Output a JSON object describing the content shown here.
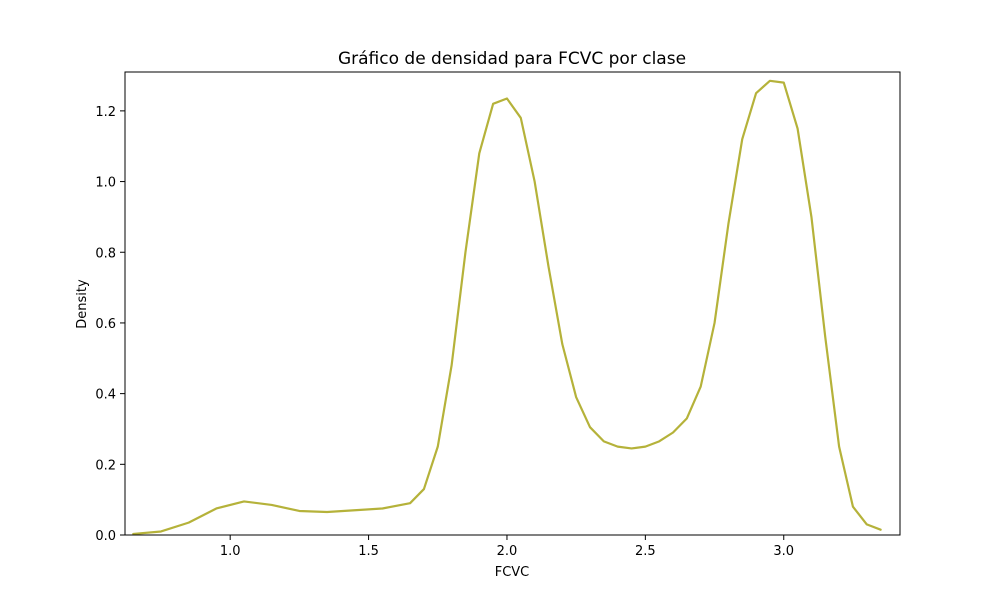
{
  "chart_data": {
    "type": "line",
    "title": "Gráfico de densidad para FCVC por clase",
    "xlabel": "FCVC",
    "ylabel": "Density",
    "xlim": [
      0.62,
      3.42
    ],
    "ylim": [
      0,
      1.31
    ],
    "xticks": [
      1.0,
      1.5,
      2.0,
      2.5,
      3.0
    ],
    "xtick_labels": [
      "1.0",
      "1.5",
      "2.0",
      "2.5",
      "3.0"
    ],
    "yticks": [
      0.0,
      0.2,
      0.4,
      0.6,
      0.8,
      1.0,
      1.2
    ],
    "ytick_labels": [
      "0.0",
      "0.2",
      "0.4",
      "0.6",
      "0.8",
      "1.0",
      "1.2"
    ],
    "grid": false,
    "legend": "none",
    "series": [
      {
        "color": "#b5b23a",
        "x": [
          0.65,
          0.75,
          0.85,
          0.95,
          1.05,
          1.15,
          1.25,
          1.35,
          1.45,
          1.55,
          1.65,
          1.7,
          1.75,
          1.8,
          1.85,
          1.9,
          1.95,
          2.0,
          2.05,
          2.1,
          2.15,
          2.2,
          2.25,
          2.3,
          2.35,
          2.4,
          2.45,
          2.5,
          2.55,
          2.6,
          2.65,
          2.7,
          2.75,
          2.8,
          2.85,
          2.9,
          2.95,
          3.0,
          3.05,
          3.1,
          3.15,
          3.2,
          3.25,
          3.3,
          3.35
        ],
        "y": [
          0.003,
          0.01,
          0.035,
          0.075,
          0.095,
          0.085,
          0.068,
          0.065,
          0.07,
          0.075,
          0.09,
          0.13,
          0.25,
          0.48,
          0.8,
          1.08,
          1.22,
          1.235,
          1.18,
          1.0,
          0.76,
          0.54,
          0.39,
          0.305,
          0.265,
          0.25,
          0.245,
          0.25,
          0.265,
          0.29,
          0.33,
          0.42,
          0.6,
          0.88,
          1.12,
          1.25,
          1.285,
          1.28,
          1.15,
          0.9,
          0.56,
          0.25,
          0.08,
          0.03,
          0.015
        ]
      }
    ]
  }
}
